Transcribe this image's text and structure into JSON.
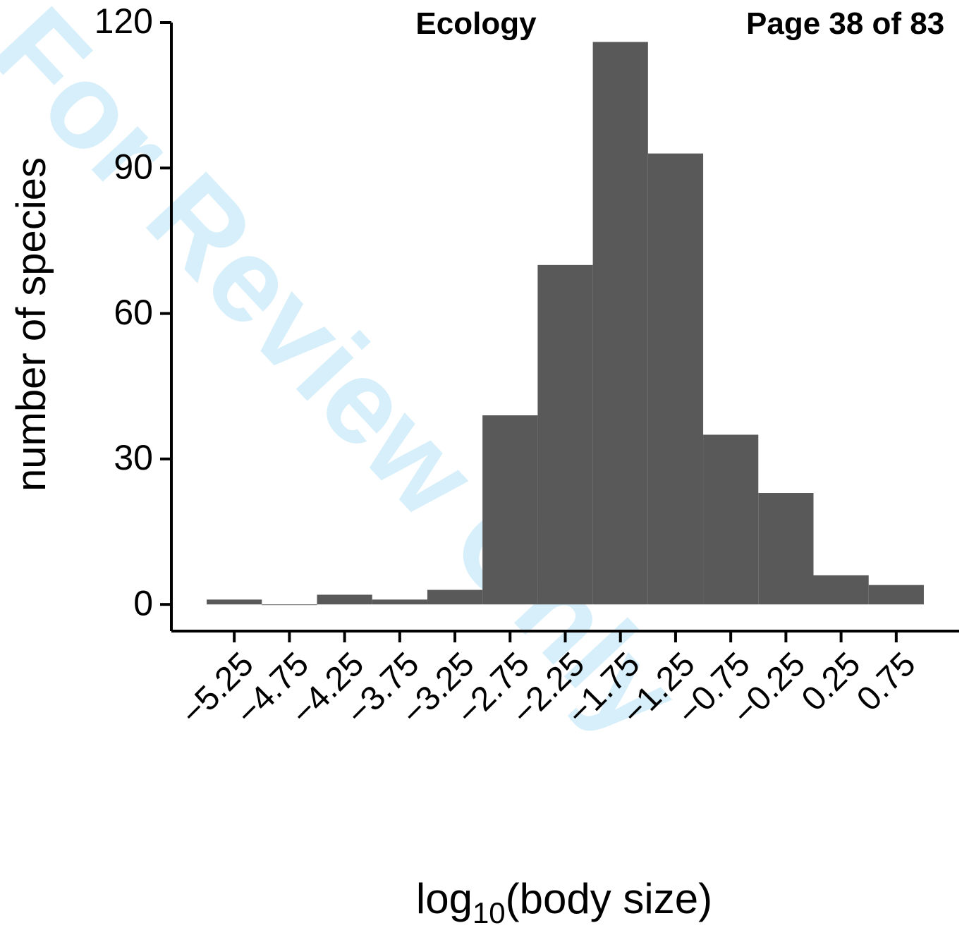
{
  "header": {
    "journal": "Ecology",
    "page": "Page 38 of 83",
    "watermark": "For Review Only"
  },
  "chart_data": {
    "type": "histogram",
    "ylabel": "number of species",
    "xlabel": {
      "base": "log",
      "subscript": "10",
      "rest": "(body size)"
    },
    "bins": [
      -5.5,
      -5.0,
      -4.5,
      -4.0,
      -3.5,
      -3.0,
      -2.5,
      -2.0,
      -1.5,
      -1.0,
      -0.5,
      0.0,
      0.5,
      1.0
    ],
    "values": [
      1,
      0,
      2,
      1,
      3,
      39,
      70,
      116,
      93,
      35,
      23,
      6,
      4
    ],
    "color": "#595959",
    "xlim": [
      -5.82,
      1.32
    ],
    "ylim": [
      -5.5,
      120
    ],
    "xticks": [
      {
        "value": -5.25,
        "label": "−5.25"
      },
      {
        "value": -4.75,
        "label": "−4.75"
      },
      {
        "value": -4.25,
        "label": "−4.25"
      },
      {
        "value": -3.75,
        "label": "−3.75"
      },
      {
        "value": -3.25,
        "label": "−3.25"
      },
      {
        "value": -2.75,
        "label": "−2.75"
      },
      {
        "value": -2.25,
        "label": "−2.25"
      },
      {
        "value": -1.75,
        "label": "−1.75"
      },
      {
        "value": -1.25,
        "label": "−1.25"
      },
      {
        "value": -0.75,
        "label": "−0.75"
      },
      {
        "value": -0.25,
        "label": "−0.25"
      },
      0.25,
      0.75
    ],
    "yticks": [
      0,
      30,
      60,
      90,
      120
    ]
  }
}
